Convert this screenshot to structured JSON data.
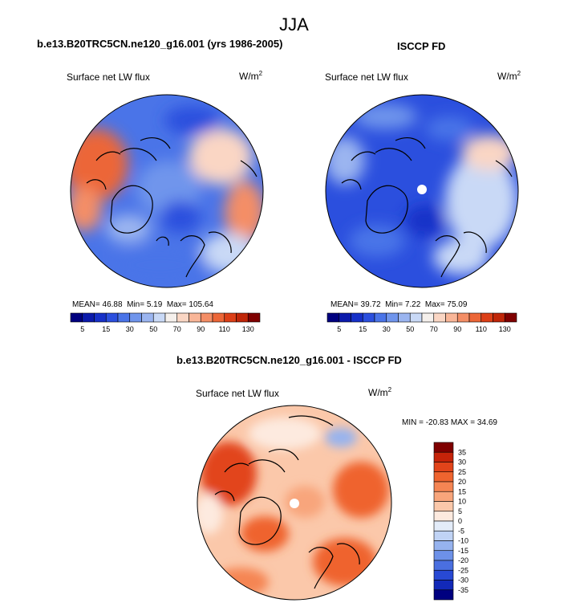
{
  "title": "JJA",
  "panels": {
    "model": {
      "case": "b.e13.B20TRC5CN.ne120_g16.001 (yrs 1986-2005)",
      "variable": "Surface net LW flux",
      "units_base": "W/m",
      "units_exp": "2",
      "mean_label": "MEAN=",
      "mean": "46.88",
      "min_label": "Min=",
      "min": "5.19",
      "max_label": "Max=",
      "max": "105.64"
    },
    "obs": {
      "case": "ISCCP FD",
      "variable": "Surface net LW flux",
      "units_base": "W/m",
      "units_exp": "2",
      "mean_label": "MEAN=",
      "mean": "39.72",
      "min_label": "Min=",
      "min": "7.22",
      "max_label": "Max=",
      "max": "75.09"
    },
    "diff": {
      "case": "b.e13.B20TRC5CN.ne120_g16.001 - ISCCP FD",
      "variable": "Surface net LW flux",
      "units_base": "W/m",
      "units_exp": "2",
      "minmax_text": "MIN = -20.83 MAX =  34.69"
    }
  },
  "chart_data": [
    {
      "type": "heatmap",
      "projection": "north polar stereographic",
      "title": "b.e13.B20TRC5CN.ne120_g16.001 (yrs 1986-2005)",
      "variable": "Surface net LW flux",
      "units": "W/m2",
      "mean": 46.88,
      "min": 5.19,
      "max": 105.64,
      "colorbar": {
        "levels": [
          5,
          10,
          15,
          20,
          30,
          40,
          50,
          60,
          70,
          80,
          90,
          100,
          110,
          120,
          130
        ],
        "tick_labels": [
          "5",
          "15",
          "30",
          "50",
          "70",
          "90",
          "110",
          "130"
        ],
        "colors": [
          "#00007f",
          "#0b1aab",
          "#1630c8",
          "#2b4fde",
          "#4a74e8",
          "#7095ec",
          "#9bb5f0",
          "#c9d9f6",
          "#f5f0ec",
          "#fad6c4",
          "#f9b698",
          "#f48e66",
          "#ec6637",
          "#dc3f17",
          "#c02608",
          "#7f0000"
        ]
      }
    },
    {
      "type": "heatmap",
      "projection": "north polar stereographic",
      "title": "ISCCP FD",
      "variable": "Surface net LW flux",
      "units": "W/m2",
      "mean": 39.72,
      "min": 7.22,
      "max": 75.09,
      "colorbar": {
        "levels": [
          5,
          10,
          15,
          20,
          30,
          40,
          50,
          60,
          70,
          80,
          90,
          100,
          110,
          120,
          130
        ],
        "tick_labels": [
          "5",
          "15",
          "30",
          "50",
          "70",
          "90",
          "110",
          "130"
        ],
        "colors": [
          "#00007f",
          "#0b1aab",
          "#1630c8",
          "#2b4fde",
          "#4a74e8",
          "#7095ec",
          "#9bb5f0",
          "#c9d9f6",
          "#f5f0ec",
          "#fad6c4",
          "#f9b698",
          "#f48e66",
          "#ec6637",
          "#dc3f17",
          "#c02608",
          "#7f0000"
        ]
      }
    },
    {
      "type": "heatmap",
      "projection": "north polar stereographic",
      "title": "b.e13.B20TRC5CN.ne120_g16.001 - ISCCP FD",
      "variable": "Surface net LW flux",
      "units": "W/m2",
      "min": -20.83,
      "max": 34.69,
      "colorbar": {
        "orientation": "vertical",
        "levels": [
          35,
          30,
          25,
          20,
          15,
          10,
          5,
          0,
          -5,
          -10,
          -15,
          -20,
          -25,
          -30,
          -35
        ],
        "tick_labels": [
          "35",
          "30",
          "25",
          "20",
          "15",
          "10",
          "5",
          "0",
          "-5",
          "-10",
          "-15",
          "-20",
          "-25",
          "-30",
          "-35"
        ],
        "colors": [
          "#7f0000",
          "#c52309",
          "#e2441a",
          "#ef642f",
          "#f58553",
          "#f8a57b",
          "#fbc8aa",
          "#fdeadf",
          "#e3ecf9",
          "#c0d3f5",
          "#96b3ef",
          "#6d91e8",
          "#4a6fe0",
          "#2849d4",
          "#1229b8",
          "#000080"
        ]
      }
    }
  ]
}
